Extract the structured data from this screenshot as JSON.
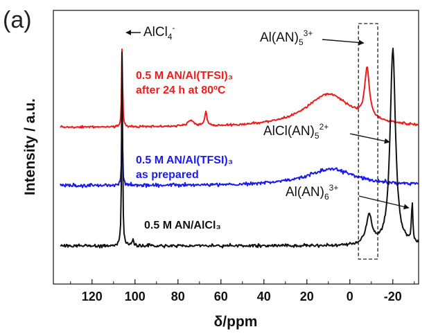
{
  "chart_data": {
    "type": "line",
    "panel_label": "(a)",
    "xlabel": "δ/ppm",
    "ylabel": "Intensity / a.u.",
    "xlim": [
      138,
      -32
    ],
    "x_reversed": true,
    "xticks": [
      120,
      100,
      80,
      60,
      40,
      20,
      0,
      -20
    ],
    "xtick_labels": [
      "120",
      "100",
      "80",
      "60",
      "40",
      "20",
      "0",
      "-20"
    ],
    "y_ticks_shown": false,
    "series": [
      {
        "name": "0.5 M AN/Al(TFSI)3 after 24 h at 80°C",
        "label_lines": [
          "0.5 M AN/Al(TFSI)₃",
          "after 24 h at 80ºC"
        ],
        "color": "#ee1c1c",
        "baseline": 0.0,
        "peaks": [
          {
            "x": 106,
            "h": 8.0,
            "w": 0.25
          },
          {
            "x": 74,
            "h": 0.5,
            "w": 2.0
          },
          {
            "x": 67,
            "h": 1.4,
            "w": 0.6
          },
          {
            "x": 10,
            "h": 3.2,
            "w": 13
          },
          {
            "x": -8,
            "h": 4.8,
            "w": 1.3
          }
        ]
      },
      {
        "name": "0.5 M AN/Al(TFSI)3 as prepared",
        "label_lines": [
          "0.5 M AN/Al(TFSI)₃",
          "as prepared"
        ],
        "color": "#1a1aee",
        "baseline": 0.0,
        "peaks": [
          {
            "x": 106,
            "h": 7.0,
            "w": 0.25
          },
          {
            "x": 9,
            "h": 1.6,
            "w": 14
          }
        ]
      },
      {
        "name": "0.5 M AN/AlCl3",
        "label_lines": [
          "0.5 M AN/AlCl₃"
        ],
        "color": "#111111",
        "baseline": 0.0,
        "peaks": [
          {
            "x": 106,
            "h": 11.0,
            "w": 0.25
          },
          {
            "x": 101,
            "h": 0.3,
            "w": 0.5
          },
          {
            "x": -9,
            "h": 1.6,
            "w": 1.6
          },
          {
            "x": -20,
            "h": 10.5,
            "w": 1.5
          },
          {
            "x": -29,
            "h": 2.1,
            "w": 0.35
          }
        ]
      }
    ],
    "annotations": [
      {
        "text": "AlCl",
        "sub": "4",
        "sup": "-",
        "arrow_to_x": 106
      },
      {
        "text": "Al(AN)",
        "sub": "5",
        "sup": "3+",
        "arrow_to_x": -8
      },
      {
        "text": "AlCl(AN)",
        "sub": "5",
        "sup": "2+",
        "arrow_to_x": -20
      },
      {
        "text": "Al(AN)",
        "sub": "6",
        "sup": "3+",
        "arrow_to_x": -29
      }
    ],
    "highlight_box": {
      "x_range": [
        -4,
        -13
      ],
      "style": "dashed"
    }
  }
}
